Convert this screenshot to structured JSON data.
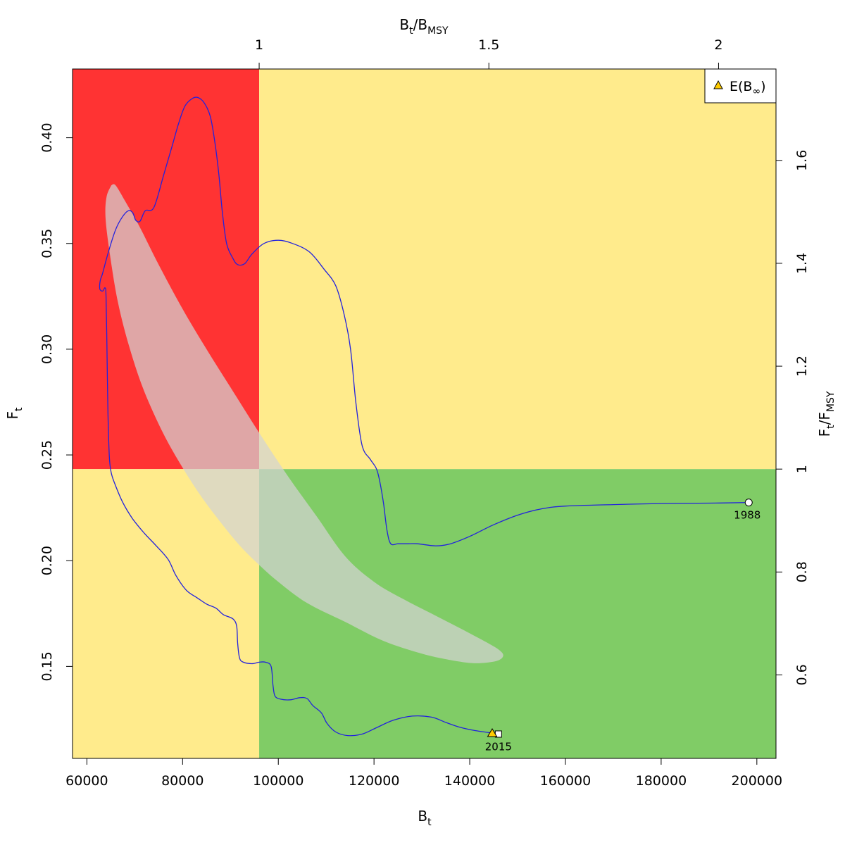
{
  "chart_data": {
    "type": "line",
    "title": "",
    "xlabel": "B",
    "xlabel_sub": "t",
    "ylabel": "F",
    "ylabel_sub": "t",
    "top_axis_label": {
      "main": "B",
      "sub1": "t",
      "sep": "/B",
      "sub2": "MSY"
    },
    "right_axis_label": {
      "main": "F",
      "sub1": "t",
      "sep": "/F",
      "sub2": "MSY"
    },
    "xlim": [
      57000,
      204000
    ],
    "ylim": [
      0.1065,
      0.4325
    ],
    "x_ticks": [
      60000,
      80000,
      100000,
      120000,
      140000,
      160000,
      180000,
      200000
    ],
    "x_tick_labels": [
      "60000",
      "80000",
      "100000",
      "120000",
      "140000",
      "160000",
      "180000",
      "200000"
    ],
    "y_ticks": [
      0.15,
      0.2,
      0.25,
      0.3,
      0.35,
      0.4
    ],
    "y_tick_labels": [
      "0.15",
      "0.20",
      "0.25",
      "0.30",
      "0.35",
      "0.40"
    ],
    "bmsy": 96000,
    "fmsy": 0.2433,
    "top_ticks": [
      1,
      1.5,
      2
    ],
    "top_tick_labels": [
      "1",
      "1.5",
      "2"
    ],
    "right_ticks": [
      0.6,
      0.8,
      1,
      1.2,
      1.4,
      1.6
    ],
    "right_tick_labels": [
      "0.6",
      "0.8",
      "1",
      "1.2",
      "1.4",
      "1.6"
    ],
    "zone_colors": {
      "red": "#ff3333",
      "yellow": "#ffeb8c",
      "green": "#80cc66"
    },
    "line_color": "#2222dd",
    "ellipse_color": "#d3d3d3",
    "legend": {
      "label": "E(B",
      "symbol": "∞",
      "close": ")",
      "position": "top-right",
      "marker_color": "#ffcc00"
    },
    "start_label": "1988",
    "end_label": "2015",
    "expected_point": [
      144700,
      0.1185
    ],
    "end_point": [
      146000,
      0.118
    ],
    "start_point": [
      198300,
      0.2275
    ],
    "ellipse": [
      [
        65100,
        0.3775
      ],
      [
        66000,
        0.3775
      ],
      [
        68000,
        0.37
      ],
      [
        71000,
        0.358
      ],
      [
        75000,
        0.34
      ],
      [
        80000,
        0.319
      ],
      [
        85000,
        0.3
      ],
      [
        90000,
        0.282
      ],
      [
        96000,
        0.2605
      ],
      [
        102000,
        0.24
      ],
      [
        108000,
        0.221
      ],
      [
        114000,
        0.202
      ],
      [
        120000,
        0.19
      ],
      [
        126000,
        0.182
      ],
      [
        132000,
        0.175
      ],
      [
        138000,
        0.168
      ],
      [
        143000,
        0.162
      ],
      [
        146000,
        0.158
      ],
      [
        147000,
        0.155
      ],
      [
        145500,
        0.1525
      ],
      [
        141000,
        0.1515
      ],
      [
        136000,
        0.153
      ],
      [
        130000,
        0.156
      ],
      [
        122000,
        0.162
      ],
      [
        114000,
        0.171
      ],
      [
        106000,
        0.18
      ],
      [
        100000,
        0.19
      ],
      [
        96000,
        0.198
      ],
      [
        92000,
        0.207
      ],
      [
        88000,
        0.218
      ],
      [
        84000,
        0.23
      ],
      [
        80000,
        0.244
      ],
      [
        76000,
        0.26
      ],
      [
        72000,
        0.28
      ],
      [
        69000,
        0.3
      ],
      [
        66500,
        0.322
      ],
      [
        64800,
        0.345
      ],
      [
        63900,
        0.362
      ],
      [
        64100,
        0.372
      ],
      [
        65100,
        0.3775
      ]
    ],
    "series": [
      {
        "values": [
          [
            198300,
            0.2275
          ],
          [
            190000,
            0.2272
          ],
          [
            180000,
            0.227
          ],
          [
            170000,
            0.2265
          ],
          [
            160000,
            0.2258
          ],
          [
            155000,
            0.2245
          ],
          [
            150000,
            0.2215
          ],
          [
            145000,
            0.217
          ],
          [
            140000,
            0.2115
          ],
          [
            136000,
            0.208
          ],
          [
            133000,
            0.207
          ],
          [
            129000,
            0.208
          ],
          [
            127000,
            0.208
          ],
          [
            125000,
            0.208
          ],
          [
            123500,
            0.208
          ],
          [
            122700,
            0.2145
          ],
          [
            122000,
            0.227
          ],
          [
            121200,
            0.2375
          ],
          [
            120500,
            0.2435
          ],
          [
            119200,
            0.248
          ],
          [
            117500,
            0.2545
          ],
          [
            116200,
            0.275
          ],
          [
            115100,
            0.3
          ],
          [
            113800,
            0.316
          ],
          [
            112000,
            0.33
          ],
          [
            109500,
            0.338
          ],
          [
            106500,
            0.346
          ],
          [
            103000,
            0.35
          ],
          [
            100000,
            0.3515
          ],
          [
            97000,
            0.35
          ],
          [
            94500,
            0.345
          ],
          [
            93000,
            0.3405
          ],
          [
            91500,
            0.34
          ],
          [
            90500,
            0.343
          ],
          [
            89200,
            0.35
          ],
          [
            88300,
            0.365
          ],
          [
            87600,
            0.382
          ],
          [
            86800,
            0.397
          ],
          [
            85800,
            0.41
          ],
          [
            84500,
            0.4165
          ],
          [
            83200,
            0.419
          ],
          [
            82000,
            0.4185
          ],
          [
            80500,
            0.415
          ],
          [
            79200,
            0.407
          ],
          [
            77800,
            0.396
          ],
          [
            76000,
            0.382
          ],
          [
            74000,
            0.367
          ],
          [
            72200,
            0.3655
          ],
          [
            71100,
            0.3605
          ],
          [
            70200,
            0.361
          ],
          [
            69600,
            0.3645
          ],
          [
            68700,
            0.3655
          ],
          [
            67400,
            0.3625
          ],
          [
            66000,
            0.3565
          ],
          [
            64500,
            0.346
          ],
          [
            63300,
            0.336
          ],
          [
            62800,
            0.3325
          ],
          [
            62700,
            0.3285
          ],
          [
            63300,
            0.3275
          ],
          [
            63800,
            0.329
          ],
          [
            64000,
            0.325
          ],
          [
            64200,
            0.3
          ],
          [
            64400,
            0.27
          ],
          [
            64700,
            0.249
          ],
          [
            65100,
            0.2415
          ],
          [
            65900,
            0.236
          ],
          [
            67500,
            0.2275
          ],
          [
            69500,
            0.22
          ],
          [
            72000,
            0.213
          ],
          [
            74500,
            0.207
          ],
          [
            77000,
            0.2005
          ],
          [
            78600,
            0.193
          ],
          [
            80800,
            0.186
          ],
          [
            83000,
            0.1825
          ],
          [
            85000,
            0.1795
          ],
          [
            87000,
            0.1775
          ],
          [
            88500,
            0.1745
          ],
          [
            90500,
            0.1725
          ],
          [
            91300,
            0.169
          ],
          [
            91500,
            0.161
          ],
          [
            91900,
            0.154
          ],
          [
            92700,
            0.152
          ],
          [
            94500,
            0.1513
          ],
          [
            96000,
            0.152
          ],
          [
            97300,
            0.152
          ],
          [
            98500,
            0.15
          ],
          [
            98900,
            0.141
          ],
          [
            99300,
            0.136
          ],
          [
            100500,
            0.1345
          ],
          [
            102500,
            0.1342
          ],
          [
            104500,
            0.1352
          ],
          [
            106000,
            0.1348
          ],
          [
            107200,
            0.1315
          ],
          [
            109000,
            0.128
          ],
          [
            110200,
            0.123
          ],
          [
            112000,
            0.119
          ],
          [
            114500,
            0.1173
          ],
          [
            117500,
            0.118
          ],
          [
            120500,
            0.121
          ],
          [
            124000,
            0.1245
          ],
          [
            128000,
            0.1265
          ],
          [
            132000,
            0.126
          ],
          [
            135000,
            0.1235
          ],
          [
            138000,
            0.1212
          ],
          [
            141000,
            0.1197
          ],
          [
            144700,
            0.1185
          ]
        ]
      }
    ]
  }
}
